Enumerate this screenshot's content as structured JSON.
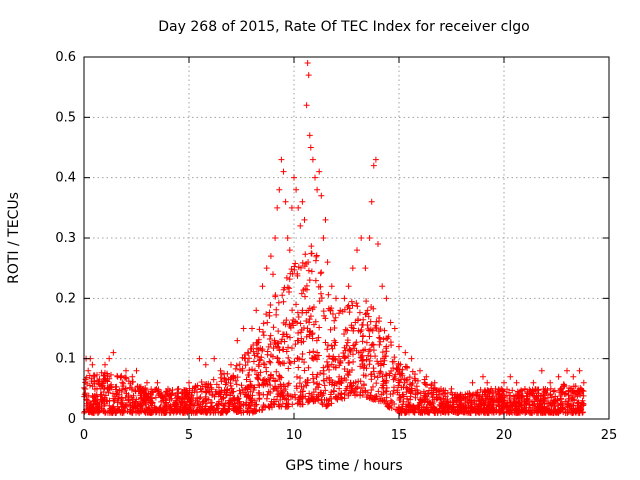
{
  "chart_data": {
    "type": "scatter",
    "title": "Day 268 of 2015, Rate Of TEC Index for receiver clgo",
    "xlabel": "GPS time / hours",
    "ylabel": "ROTI / TECUs",
    "xlim": [
      0,
      25
    ],
    "ylim": [
      0,
      0.6
    ],
    "xticks": [
      "0",
      "5",
      "10",
      "15",
      "20",
      "25"
    ],
    "yticks": [
      "0",
      "0.1",
      "0.2",
      "0.3",
      "0.4",
      "0.5",
      "0.6"
    ],
    "grid": true,
    "marker": "plus",
    "color": "#ff0000",
    "series": [
      {
        "points": [
          [
            0.1,
            0.1
          ],
          [
            0.2,
            0.08
          ],
          [
            0.3,
            0.1
          ],
          [
            0.4,
            0.09
          ],
          [
            0.5,
            0.07
          ],
          [
            0.8,
            0.05
          ],
          [
            1.0,
            0.09
          ],
          [
            1.2,
            0.1
          ],
          [
            1.4,
            0.11
          ],
          [
            1.6,
            0.07
          ],
          [
            2.0,
            0.08
          ],
          [
            2.3,
            0.07
          ],
          [
            2.5,
            0.08
          ],
          [
            3.0,
            0.06
          ],
          [
            3.5,
            0.06
          ],
          [
            4.0,
            0.05
          ],
          [
            4.5,
            0.05
          ],
          [
            5.0,
            0.06
          ],
          [
            5.5,
            0.1
          ],
          [
            5.8,
            0.09
          ],
          [
            6.2,
            0.1
          ],
          [
            6.5,
            0.08
          ],
          [
            7.0,
            0.09
          ],
          [
            7.3,
            0.13
          ],
          [
            7.6,
            0.15
          ],
          [
            7.8,
            0.11
          ],
          [
            8.0,
            0.15
          ],
          [
            8.2,
            0.18
          ],
          [
            8.5,
            0.22
          ],
          [
            8.7,
            0.25
          ],
          [
            8.9,
            0.27
          ],
          [
            9.0,
            0.24
          ],
          [
            9.1,
            0.3
          ],
          [
            9.2,
            0.35
          ],
          [
            9.3,
            0.38
          ],
          [
            9.4,
            0.43
          ],
          [
            9.5,
            0.41
          ],
          [
            9.6,
            0.36
          ],
          [
            9.7,
            0.3
          ],
          [
            9.8,
            0.28
          ],
          [
            9.9,
            0.35
          ],
          [
            10.0,
            0.4
          ],
          [
            10.1,
            0.38
          ],
          [
            10.2,
            0.35
          ],
          [
            10.3,
            0.32
          ],
          [
            10.4,
            0.36
          ],
          [
            10.5,
            0.33
          ],
          [
            10.6,
            0.52
          ],
          [
            10.65,
            0.59
          ],
          [
            10.7,
            0.57
          ],
          [
            10.75,
            0.47
          ],
          [
            10.8,
            0.45
          ],
          [
            10.9,
            0.43
          ],
          [
            11.0,
            0.4
          ],
          [
            11.1,
            0.38
          ],
          [
            11.2,
            0.41
          ],
          [
            11.3,
            0.37
          ],
          [
            11.4,
            0.3
          ],
          [
            11.5,
            0.33
          ],
          [
            11.6,
            0.26
          ],
          [
            11.8,
            0.22
          ],
          [
            12.0,
            0.2
          ],
          [
            12.2,
            0.18
          ],
          [
            12.4,
            0.2
          ],
          [
            12.6,
            0.22
          ],
          [
            12.8,
            0.25
          ],
          [
            13.0,
            0.28
          ],
          [
            13.2,
            0.3
          ],
          [
            13.4,
            0.25
          ],
          [
            13.6,
            0.3
          ],
          [
            13.7,
            0.36
          ],
          [
            13.8,
            0.42
          ],
          [
            13.9,
            0.43
          ],
          [
            14.0,
            0.29
          ],
          [
            14.2,
            0.22
          ],
          [
            14.4,
            0.2
          ],
          [
            14.6,
            0.16
          ],
          [
            14.8,
            0.15
          ],
          [
            15.0,
            0.12
          ],
          [
            15.3,
            0.11
          ],
          [
            15.6,
            0.1
          ],
          [
            16.0,
            0.08
          ],
          [
            16.3,
            0.07
          ],
          [
            16.7,
            0.06
          ],
          [
            17.0,
            0.05
          ],
          [
            17.5,
            0.05
          ],
          [
            18.0,
            0.04
          ],
          [
            18.5,
            0.06
          ],
          [
            19.0,
            0.07
          ],
          [
            19.2,
            0.06
          ],
          [
            19.6,
            0.05
          ],
          [
            20.0,
            0.06
          ],
          [
            20.3,
            0.07
          ],
          [
            20.6,
            0.06
          ],
          [
            21.0,
            0.05
          ],
          [
            21.4,
            0.06
          ],
          [
            21.8,
            0.08
          ],
          [
            22.2,
            0.06
          ],
          [
            22.6,
            0.07
          ],
          [
            23.0,
            0.08
          ],
          [
            23.3,
            0.07
          ],
          [
            23.6,
            0.08
          ],
          [
            23.8,
            0.06
          ]
        ]
      }
    ],
    "envelope": [
      [
        0.0,
        0.01,
        0.07
      ],
      [
        1.0,
        0.01,
        0.08
      ],
      [
        2.0,
        0.01,
        0.07
      ],
      [
        3.0,
        0.01,
        0.05
      ],
      [
        4.0,
        0.01,
        0.05
      ],
      [
        5.0,
        0.01,
        0.05
      ],
      [
        6.0,
        0.01,
        0.07
      ],
      [
        7.0,
        0.01,
        0.08
      ],
      [
        8.0,
        0.01,
        0.12
      ],
      [
        9.0,
        0.02,
        0.2
      ],
      [
        10.0,
        0.02,
        0.26
      ],
      [
        11.0,
        0.03,
        0.3
      ],
      [
        11.5,
        0.02,
        0.22
      ],
      [
        12.0,
        0.03,
        0.18
      ],
      [
        13.0,
        0.04,
        0.2
      ],
      [
        14.0,
        0.03,
        0.2
      ],
      [
        15.0,
        0.01,
        0.1
      ],
      [
        16.0,
        0.01,
        0.07
      ],
      [
        17.0,
        0.01,
        0.05
      ],
      [
        18.0,
        0.01,
        0.04
      ],
      [
        19.0,
        0.01,
        0.05
      ],
      [
        20.0,
        0.01,
        0.05
      ],
      [
        21.0,
        0.01,
        0.05
      ],
      [
        22.0,
        0.01,
        0.05
      ],
      [
        23.0,
        0.01,
        0.06
      ],
      [
        23.8,
        0.01,
        0.05
      ]
    ]
  }
}
